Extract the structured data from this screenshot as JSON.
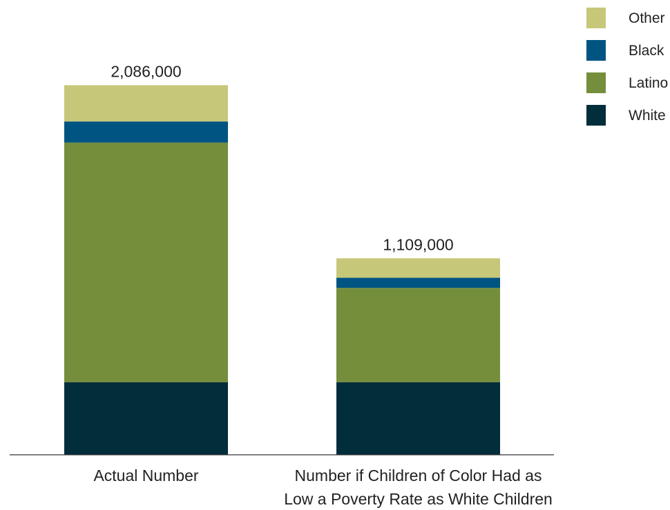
{
  "chart_data": {
    "type": "bar",
    "stacked": true,
    "categories": [
      "Actual Number",
      "Number if Children of Color Had as Low a Poverty Rate as White Children"
    ],
    "category_label_lines": [
      [
        "Actual Number"
      ],
      [
        "Number if Children of Color Had as",
        "Low a Poverty Rate as White Children"
      ]
    ],
    "totals": [
      2086000,
      1109000
    ],
    "total_labels": [
      "2,086,000",
      "1,109,000"
    ],
    "series": [
      {
        "name": "White",
        "color": "#022d3b",
        "values": [
          410000,
          410000
        ]
      },
      {
        "name": "Latino",
        "color": "#748e3b",
        "values": [
          1352000,
          532000
        ]
      },
      {
        "name": "Black",
        "color": "#005482",
        "values": [
          119000,
          57000
        ]
      },
      {
        "name": "Other",
        "color": "#c7c77a",
        "values": [
          205000,
          110000
        ]
      }
    ],
    "legend_order": [
      "Other",
      "Black",
      "Latino",
      "White"
    ],
    "legend_position": "top-right",
    "ylim": [
      0,
      2450000
    ],
    "grid": false,
    "title": "",
    "xlabel": "",
    "ylabel": ""
  }
}
